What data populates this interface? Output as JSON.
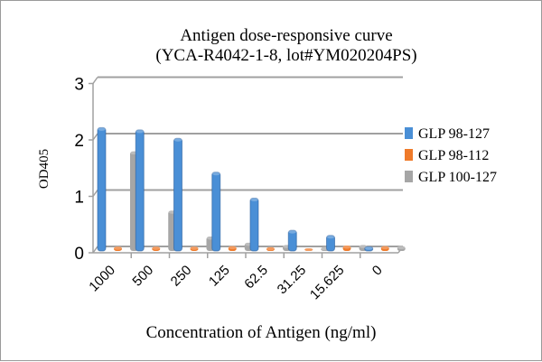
{
  "chart_data": {
    "type": "bar",
    "title_line1": "Antigen dose-responsive curve",
    "title_line2": "(YCA-R4042-1-8, lot#YM020204PS)",
    "xlabel": "Concentration of Antigen (ng/ml)",
    "ylabel": "OD405",
    "ylim": [
      0,
      3
    ],
    "yticks": [
      "0",
      "1",
      "2",
      "3"
    ],
    "grid": true,
    "legend_position": "right",
    "categories": [
      "1000",
      "500",
      "250",
      "125",
      "62.5",
      "31.25",
      "15.625",
      "0"
    ],
    "series": [
      {
        "name": "GLP 98-127",
        "color": "#4a8fd6",
        "values": [
          2.17,
          2.13,
          1.98,
          1.38,
          0.92,
          0.35,
          0.26,
          0.06
        ]
      },
      {
        "name": "GLP 98-112",
        "color": "#ef7a2a",
        "values": [
          0.06,
          0.06,
          0.06,
          0.07,
          0.05,
          0.03,
          0.08,
          0.07
        ]
      },
      {
        "name": "GLP 100-127",
        "color": "#a6a6a6",
        "values": [
          1.75,
          0.7,
          0.24,
          0.13,
          0.09,
          0.05,
          0.09,
          0.07
        ]
      }
    ]
  }
}
